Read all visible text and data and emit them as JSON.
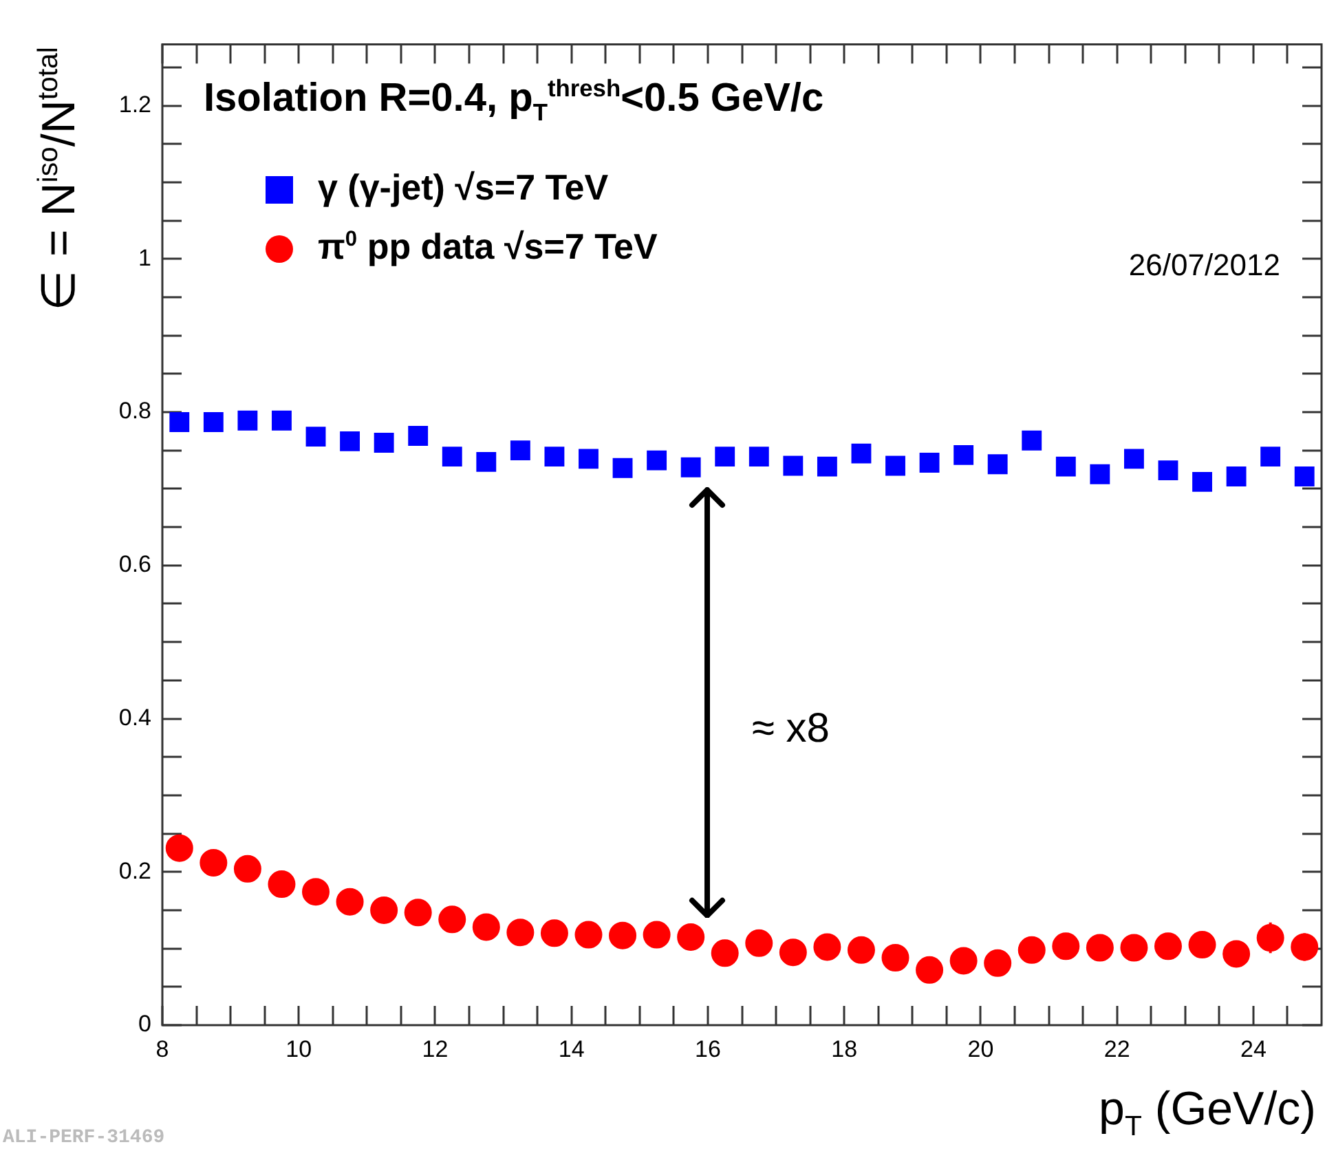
{
  "chart_data": {
    "type": "scatter",
    "title": "Isolation R=0.4, p$_{T}$$^{thresh}$<0.5 GeV/c",
    "xlabel": "p$_{T}$ (GeV/c)",
    "ylabel": "∈ = N$^{iso}$/N$^{total}$",
    "x": [
      8.25,
      8.75,
      9.25,
      9.75,
      10.25,
      10.75,
      11.25,
      11.75,
      12.25,
      12.75,
      13.25,
      13.75,
      14.25,
      14.75,
      15.25,
      15.75,
      16.25,
      16.75,
      17.25,
      17.75,
      18.25,
      18.75,
      19.25,
      19.75,
      20.25,
      20.75,
      21.25,
      21.75,
      22.25,
      22.75,
      23.25,
      23.75,
      24.25,
      24.75
    ],
    "series": [
      {
        "name": "γ (γ-jet) √s=7 TeV",
        "color": "#0000ff",
        "marker": "square",
        "values": [
          0.787,
          0.787,
          0.789,
          0.789,
          0.768,
          0.762,
          0.76,
          0.769,
          0.742,
          0.735,
          0.75,
          0.742,
          0.739,
          0.727,
          0.737,
          0.728,
          0.742,
          0.742,
          0.73,
          0.729,
          0.746,
          0.73,
          0.734,
          0.744,
          0.732,
          0.763,
          0.729,
          0.719,
          0.739,
          0.724,
          0.709,
          0.716,
          0.742,
          0.716
        ]
      },
      {
        "name": "π$^{0}$ pp data √s=7 TeV",
        "color": "#ff0000",
        "marker": "circle",
        "values": [
          0.231,
          0.212,
          0.204,
          0.184,
          0.174,
          0.161,
          0.15,
          0.147,
          0.138,
          0.128,
          0.121,
          0.12,
          0.118,
          0.117,
          0.118,
          0.115,
          0.094,
          0.107,
          0.095,
          0.102,
          0.098,
          0.088,
          0.072,
          0.084,
          0.081,
          0.098,
          0.103,
          0.101,
          0.101,
          0.103,
          0.105,
          0.093,
          0.114,
          0.102
        ],
        "errors": [
          null,
          null,
          null,
          null,
          null,
          null,
          null,
          null,
          null,
          null,
          null,
          null,
          null,
          null,
          null,
          null,
          null,
          null,
          null,
          null,
          null,
          null,
          null,
          null,
          null,
          null,
          null,
          null,
          null,
          null,
          null,
          null,
          0.02,
          0.018
        ]
      }
    ],
    "xlim": [
      8,
      25
    ],
    "ylim": [
      0,
      1.28
    ],
    "xticks": [
      8,
      {
        "value": 8.5,
        "label": null
      },
      {
        "value": 9,
        "label": null
      },
      {
        "value": 9.5,
        "label": null
      },
      10,
      {
        "value": 10.5,
        "label": null
      },
      {
        "value": 11,
        "label": null
      },
      {
        "value": 11.5,
        "label": null
      },
      12,
      {
        "value": 12.5,
        "label": null
      },
      {
        "value": 13,
        "label": null
      },
      {
        "value": 13.5,
        "label": null
      },
      14,
      {
        "value": 14.5,
        "label": null
      },
      {
        "value": 15,
        "label": null
      },
      {
        "value": 15.5,
        "label": null
      },
      16,
      {
        "value": 16.5,
        "label": null
      },
      {
        "value": 17,
        "label": null
      },
      {
        "value": 17.5,
        "label": null
      },
      18,
      {
        "value": 18.5,
        "label": null
      },
      {
        "value": 19,
        "label": null
      },
      {
        "value": 19.5,
        "label": null
      },
      20,
      {
        "value": 20.5,
        "label": null
      },
      {
        "value": 21,
        "label": null
      },
      {
        "value": 21.5,
        "label": null
      },
      22,
      {
        "value": 22.5,
        "label": null
      },
      {
        "value": 23,
        "label": null
      },
      {
        "value": 23.5,
        "label": null
      },
      24,
      {
        "value": 24.5,
        "label": null
      }
    ],
    "yticks": [
      0,
      {
        "value": 0.05,
        "label": null
      },
      {
        "value": 0.1,
        "label": null
      },
      {
        "value": 0.15,
        "label": null
      },
      0.2,
      {
        "value": 0.25,
        "label": null
      },
      {
        "value": 0.3,
        "label": null
      },
      {
        "value": 0.35,
        "label": null
      },
      0.4,
      {
        "value": 0.45,
        "label": null
      },
      {
        "value": 0.5,
        "label": null
      },
      {
        "value": 0.55,
        "label": null
      },
      0.6,
      {
        "value": 0.65,
        "label": null
      },
      {
        "value": 0.7,
        "label": null
      },
      {
        "value": 0.75,
        "label": null
      },
      0.8,
      {
        "value": 0.85,
        "label": null
      },
      {
        "value": 0.9,
        "label": null
      },
      {
        "value": 0.95,
        "label": null
      },
      1,
      {
        "value": 1.05,
        "label": null
      },
      {
        "value": 1.1,
        "label": null
      },
      {
        "value": 1.15,
        "label": null
      },
      1.2,
      {
        "value": 1.25,
        "label": null
      }
    ],
    "grid": false,
    "legend": "top left",
    "annotations": [
      "26/07/2012",
      "ALI-PERF-31469",
      "≈ x8"
    ]
  }
}
